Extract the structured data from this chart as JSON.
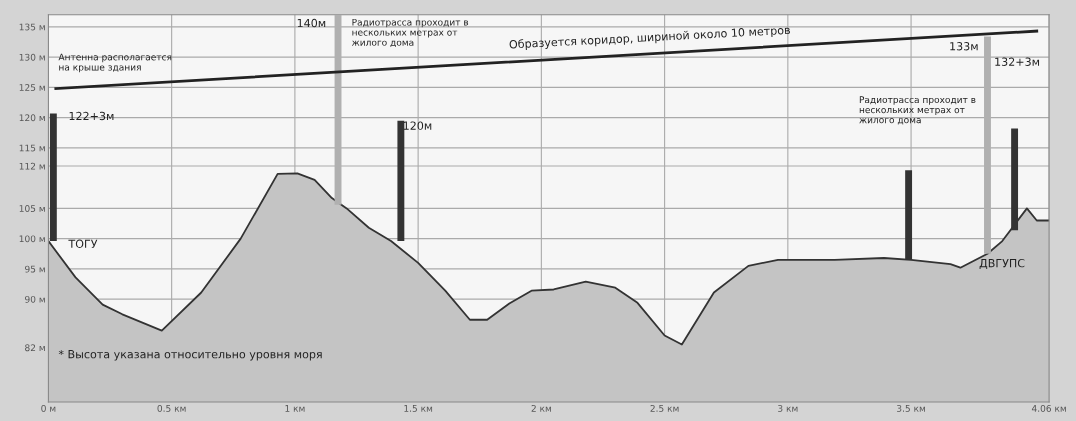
{
  "chart_data": {
    "type": "area",
    "xlim": [
      0,
      4.06
    ],
    "ylim": [
      73,
      137
    ],
    "xticks": [
      {
        "value": 0,
        "label": "0 м"
      },
      {
        "value": 0.5,
        "label": "0.5 км"
      },
      {
        "value": 1,
        "label": "1 км"
      },
      {
        "value": 1.5,
        "label": "1.5 км"
      },
      {
        "value": 2,
        "label": "2 км"
      },
      {
        "value": 2.5,
        "label": "2.5 км"
      },
      {
        "value": 3,
        "label": "3 км"
      },
      {
        "value": 3.5,
        "label": "3.5 км"
      },
      {
        "value": 4.06,
        "label": "4.06 км"
      }
    ],
    "yticks": [
      {
        "value": 135,
        "label": "135 м"
      },
      {
        "value": 130,
        "label": "130 м"
      },
      {
        "value": 125,
        "label": "125 м"
      },
      {
        "value": 120,
        "label": "120 м"
      },
      {
        "value": 115,
        "label": "115 м"
      },
      {
        "value": 112,
        "label": "112 м"
      },
      {
        "value": 105,
        "label": "105 м"
      },
      {
        "value": 100,
        "label": "100 м"
      },
      {
        "value": 95,
        "label": "95 м"
      },
      {
        "value": 90,
        "label": "90 м"
      },
      {
        "value": 82,
        "label": "82 м"
      }
    ],
    "grid": true,
    "series": [
      {
        "color": "#c4c4c4",
        "x": [
          0,
          0.11,
          0.22,
          0.3,
          0.46,
          0.62,
          0.78,
          0.93,
          1.01,
          1.08,
          1.15,
          1.21,
          1.3,
          1.39,
          1.5,
          1.61,
          1.71,
          1.78,
          1.87,
          1.96,
          2.05,
          2.18,
          2.3,
          2.39,
          2.5,
          2.57,
          2.7,
          2.84,
          2.96,
          3.19,
          3.39,
          3.5,
          3.66,
          3.7,
          3.81,
          3.87,
          3.97,
          4.01,
          4.06
        ],
        "values": [
          99.6,
          93.6,
          89.1,
          87.5,
          84.8,
          91.1,
          100,
          110.7,
          110.8,
          109.7,
          106.7,
          105,
          101.8,
          99.6,
          96,
          91.4,
          86.6,
          86.6,
          89.3,
          91.4,
          91.6,
          92.9,
          91.9,
          89.4,
          84,
          82.5,
          91.1,
          95.5,
          96.5,
          96.5,
          96.8,
          96.5,
          95.8,
          95.2,
          97.5,
          99.6,
          105,
          103,
          103
        ]
      },
      {
        "type": "line",
        "color": "#222222",
        "x": [
          0.03,
          4.01
        ],
        "values": [
          124.8,
          134.3
        ]
      },
      {
        "type": "bar",
        "x": [
          0.02,
          1.175,
          1.43,
          3.49,
          3.81,
          3.92
        ],
        "base": [
          99.6,
          105.6,
          99.6,
          96.5,
          97.5,
          101.4
        ],
        "values": [
          21.1,
          31.4,
          19.9,
          14.8,
          35.9,
          16.8
        ],
        "colors": [
          "#333333",
          "#b0b0b0",
          "#333333",
          "#333333",
          "#b0b0b0",
          "#333333"
        ]
      }
    ],
    "annotations": [
      "Антенна располагается\nна крыше здания",
      "122+3м",
      "ТОГУ",
      "140м",
      "Радиотрасса проходит в\nнескольких метрах от\nжилого дома",
      "Образуется коридор, шириной около 10 метров",
      "120м",
      "Радиотрасса проходит в\nнескольких метрах от\nжилого дома",
      "133м",
      "132+3м",
      "ДВГУПС",
      "* Высота указана относительно уровня моря"
    ]
  }
}
